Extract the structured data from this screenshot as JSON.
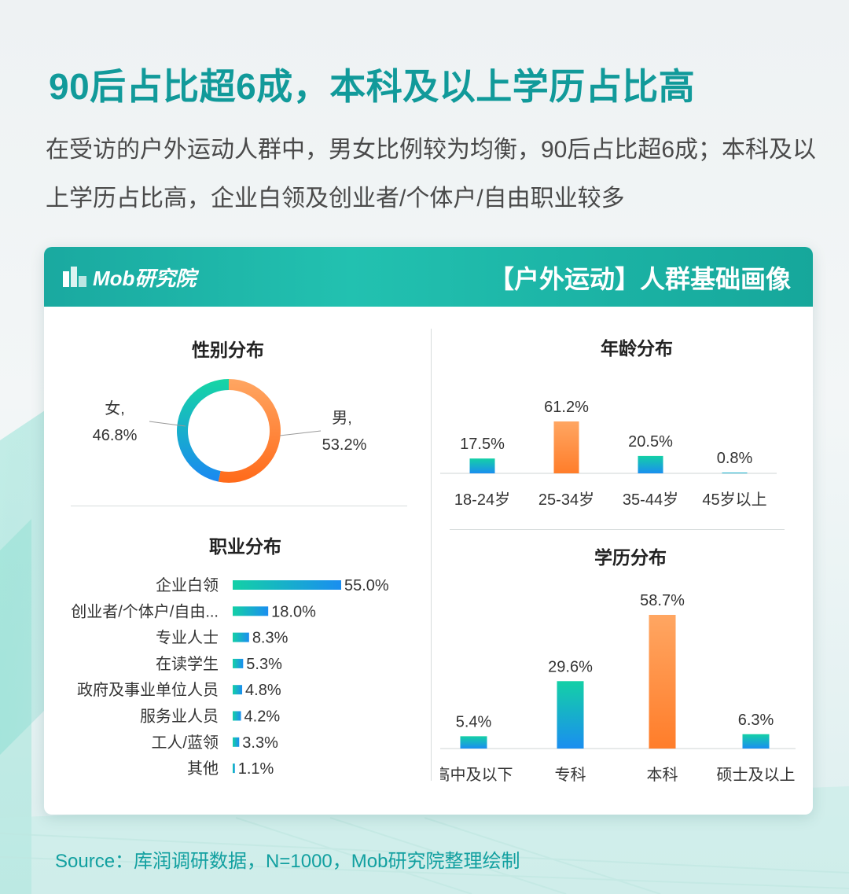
{
  "headline": "90后占比超6成，本科及以上学历占比高",
  "subtitle": "在受访的户外运动人群中，男女比例较为均衡，90后占比超6成；本科及以上学历占比高，企业白领及创业者/个体户/自由职业较多",
  "card": {
    "logo_text": "Mob研究院",
    "title": "【户外运动】人群基础画像"
  },
  "colors": {
    "teal": "#14d0a6",
    "blue": "#1a8ef0",
    "orange": "#ff7d2a",
    "orange_light": "#ffa662",
    "headline": "#119a9a"
  },
  "chart_data": [
    {
      "type": "pie",
      "title": "性别分布",
      "slices": [
        {
          "name": "男",
          "value": 53.2,
          "label": "男,",
          "value_label": "53.2%"
        },
        {
          "name": "女",
          "value": 46.8,
          "label": "女,",
          "value_label": "46.8%"
        }
      ]
    },
    {
      "type": "bar",
      "title": "年龄分布",
      "categories": [
        "18-24岁",
        "25-34岁",
        "35-44岁",
        "45岁以上"
      ],
      "values": [
        17.5,
        61.2,
        20.5,
        0.8
      ],
      "labels": [
        "17.5%",
        "61.2%",
        "20.5%",
        "0.8%"
      ],
      "highlight_index": 1
    },
    {
      "type": "bar",
      "orientation": "horizontal",
      "title": "职业分布",
      "categories": [
        "企业白领",
        "创业者/个体户/自由...",
        "专业人士",
        "在读学生",
        "政府及事业单位人员",
        "服务业人员",
        "工人/蓝领",
        "其他"
      ],
      "values": [
        55.0,
        18.0,
        8.3,
        5.3,
        4.8,
        4.2,
        3.3,
        1.1
      ],
      "labels": [
        "55.0%",
        "18.0%",
        "8.3%",
        "5.3%",
        "4.8%",
        "4.2%",
        "3.3%",
        "1.1%"
      ]
    },
    {
      "type": "bar",
      "title": "学历分布",
      "categories": [
        "高中及以下",
        "专科",
        "本科",
        "硕士及以上"
      ],
      "values": [
        5.4,
        29.6,
        58.7,
        6.3
      ],
      "labels": [
        "5.4%",
        "29.6%",
        "58.7%",
        "6.3%"
      ],
      "highlight_index": 2
    }
  ],
  "source": "Source：库润调研数据，N=1000，Mob研究院整理绘制"
}
